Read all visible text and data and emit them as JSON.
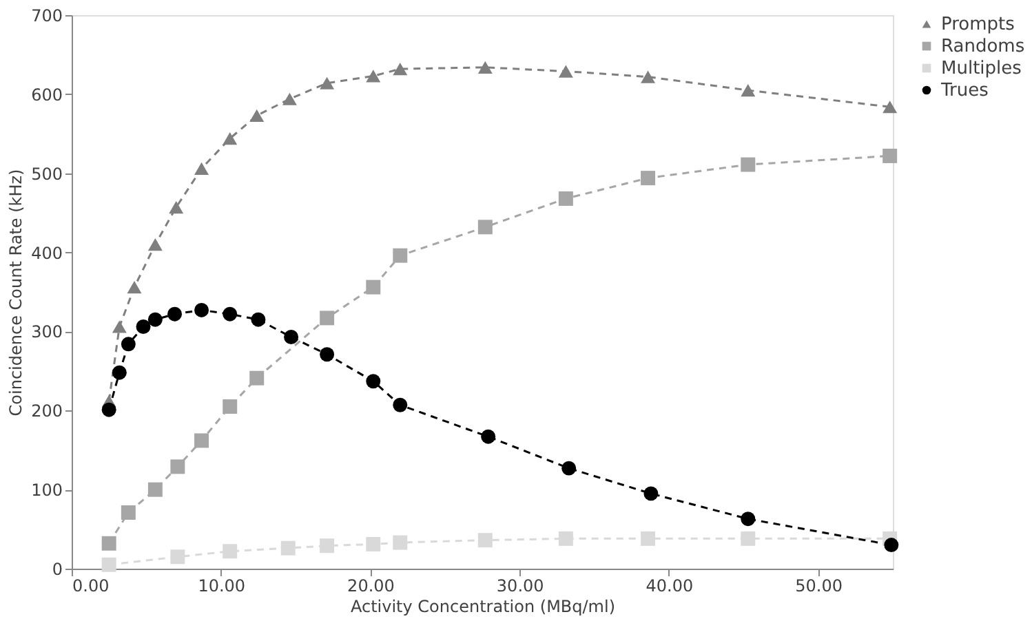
{
  "chart_data": {
    "type": "line",
    "xlabel": "Activity Concentration (MBq/ml)",
    "ylabel": "Coincidence Count Rate (kHz)",
    "xlim": [
      0,
      55
    ],
    "xticks": [
      {
        "value": 0,
        "label": "0.00"
      },
      {
        "value": 10,
        "label": "10.00"
      },
      {
        "value": 20,
        "label": "20.00"
      },
      {
        "value": 30,
        "label": "30.00"
      },
      {
        "value": 40,
        "label": "40.00"
      },
      {
        "value": 50,
        "label": "50.00"
      }
    ],
    "ylim": [
      0,
      700
    ],
    "yticks": [
      0,
      100,
      200,
      300,
      400,
      500,
      600,
      700
    ],
    "grid": false,
    "legend": "right",
    "line_style": "dashed",
    "series": [
      {
        "name": "Prompts",
        "color": "#7f7f7f",
        "marker": "triangle",
        "x": [
          2.5,
          3.2,
          4.2,
          5.6,
          7.0,
          8.7,
          10.6,
          12.4,
          14.6,
          17.1,
          20.2,
          22.0,
          27.7,
          33.1,
          38.6,
          45.3,
          54.8
        ],
        "values": [
          212,
          306,
          356,
          410,
          457,
          506,
          544,
          573,
          594,
          614,
          623,
          632,
          634,
          629,
          622,
          605,
          584
        ]
      },
      {
        "name": "Randoms",
        "color": "#a6a6a6",
        "marker": "square",
        "x": [
          2.5,
          3.8,
          5.6,
          7.1,
          8.7,
          10.6,
          12.4,
          17.1,
          20.2,
          22.0,
          27.7,
          33.1,
          38.6,
          45.3,
          54.8
        ],
        "values": [
          32,
          71,
          100,
          129,
          162,
          205,
          241,
          317,
          356,
          396,
          432,
          468,
          494,
          511,
          522
        ]
      },
      {
        "name": "Multiples",
        "color": "#d9d9d9",
        "marker": "square",
        "x": [
          2.5,
          7.1,
          10.6,
          14.5,
          17.1,
          20.2,
          22.0,
          27.7,
          33.1,
          38.6,
          45.3,
          54.8
        ],
        "values": [
          5,
          15,
          22,
          26,
          29,
          31,
          33,
          36,
          38,
          38,
          38,
          38
        ]
      },
      {
        "name": "Trues",
        "color": "#000000",
        "marker": "circle",
        "x": [
          2.5,
          3.2,
          3.8,
          4.8,
          5.6,
          6.9,
          8.7,
          10.6,
          12.5,
          14.7,
          17.1,
          20.2,
          22.0,
          27.9,
          33.3,
          38.8,
          45.3,
          54.9
        ],
        "values": [
          201,
          248,
          284,
          306,
          315,
          322,
          327,
          322,
          315,
          293,
          271,
          237,
          207,
          167,
          127,
          95,
          63,
          30
        ]
      }
    ]
  }
}
